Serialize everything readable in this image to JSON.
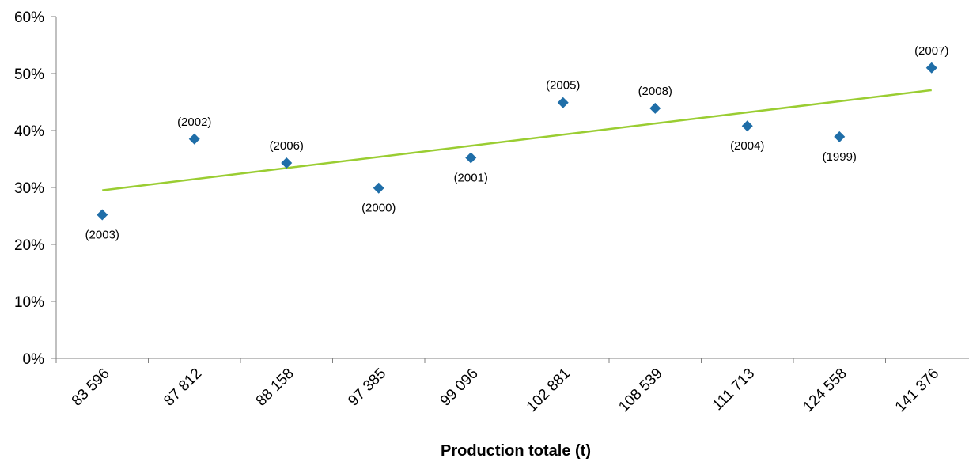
{
  "chart_data": {
    "type": "scatter",
    "title": "",
    "xlabel": "Production totale (t)",
    "ylabel": "",
    "categories": [
      "83 596",
      "87 812",
      "88 158",
      "97 385",
      "99 096",
      "102 881",
      "108 539",
      "111 713",
      "124 558",
      "141 376"
    ],
    "series": [
      {
        "values": [
          25.2,
          38.5,
          34.3,
          29.9,
          35.2,
          44.9,
          43.9,
          40.8,
          38.9,
          51.0
        ],
        "labels": [
          "(2003)",
          "(2002)",
          "(2006)",
          "(2000)",
          "(2001)",
          "(2005)",
          "(2008)",
          "(2004)",
          "(1999)",
          "(2007)"
        ],
        "label_positions": [
          "below",
          "above",
          "above",
          "below",
          "below",
          "above",
          "above",
          "below",
          "below",
          "above"
        ],
        "color": "#1f6ea8"
      }
    ],
    "trendline": {
      "type": "linear",
      "start": 29.5,
      "end": 47.1,
      "color": "#9acd32"
    },
    "ylim": [
      0,
      60
    ],
    "yticks": [
      0,
      10,
      20,
      30,
      40,
      50,
      60
    ],
    "ytick_labels": [
      "0%",
      "10%",
      "20%",
      "30%",
      "40%",
      "50%",
      "60%"
    ],
    "grid": false,
    "legend": "none"
  }
}
